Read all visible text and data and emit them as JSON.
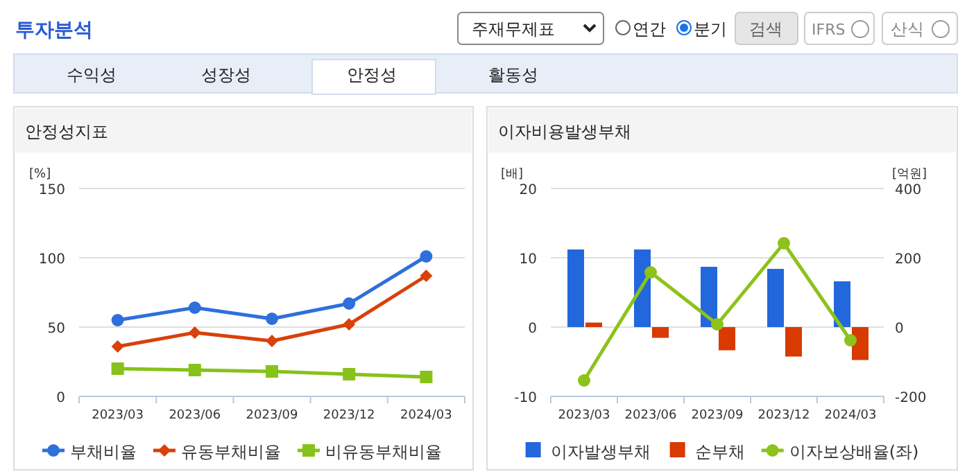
{
  "chart_data": [
    {
      "type": "other",
      "title": "투자분석",
      "annotations": [
        "주재무제표",
        "연간",
        "분기",
        "검색",
        "IFRS",
        "산식",
        "수익성",
        "성장성",
        "안정성",
        "활동성"
      ]
    },
    {
      "type": "line",
      "title": "안정성지표",
      "ylabel": "[%]",
      "categories": [
        "2023/03",
        "2023/06",
        "2023/09",
        "2023/12",
        "2024/03"
      ],
      "ylim": [
        0,
        150
      ],
      "yticks": [
        0,
        50,
        100,
        150
      ],
      "grid": "y",
      "legend": "bottom",
      "line_style": "solid",
      "series": [
        {
          "name": "부채비율",
          "color": "#2f6fdc",
          "marker": "circle",
          "values": [
            55,
            64,
            56,
            67,
            101
          ]
        },
        {
          "name": "유동부채비율",
          "color": "#d9400b",
          "marker": "diamond",
          "values": [
            36,
            46,
            40,
            52,
            87
          ]
        },
        {
          "name": "비유동부채비율",
          "color": "#86c21a",
          "marker": "square",
          "values": [
            20,
            19,
            18,
            16,
            14
          ]
        }
      ]
    },
    {
      "type": "bar",
      "title": "이자비용발생부채",
      "ylabel": "[배]",
      "y2label": "[억원]",
      "categories": [
        "2023/03",
        "2023/06",
        "2023/09",
        "2023/12",
        "2024/03"
      ],
      "ylim": [
        -10,
        20
      ],
      "yticks": [
        -10,
        0,
        10,
        20
      ],
      "y2lim": [
        -200,
        400
      ],
      "y2ticks": [
        -200,
        0,
        200,
        400
      ],
      "grid": "y",
      "legend": "bottom",
      "series": [
        {
          "name": "이자발생부채",
          "color": "#2267dc",
          "axis": "y2",
          "values": [
            224,
            224,
            174,
            168,
            132
          ]
        },
        {
          "name": "순부채",
          "color": "#d83a00",
          "axis": "y2",
          "values": [
            13,
            -31,
            -67,
            -85,
            -95
          ]
        },
        {
          "name": "이자보상배율(좌)",
          "type": "line",
          "color": "#8cc21b",
          "marker": "circle",
          "values": [
            -7.7,
            7.9,
            0.4,
            12.1,
            -1.9
          ]
        }
      ]
    }
  ]
}
